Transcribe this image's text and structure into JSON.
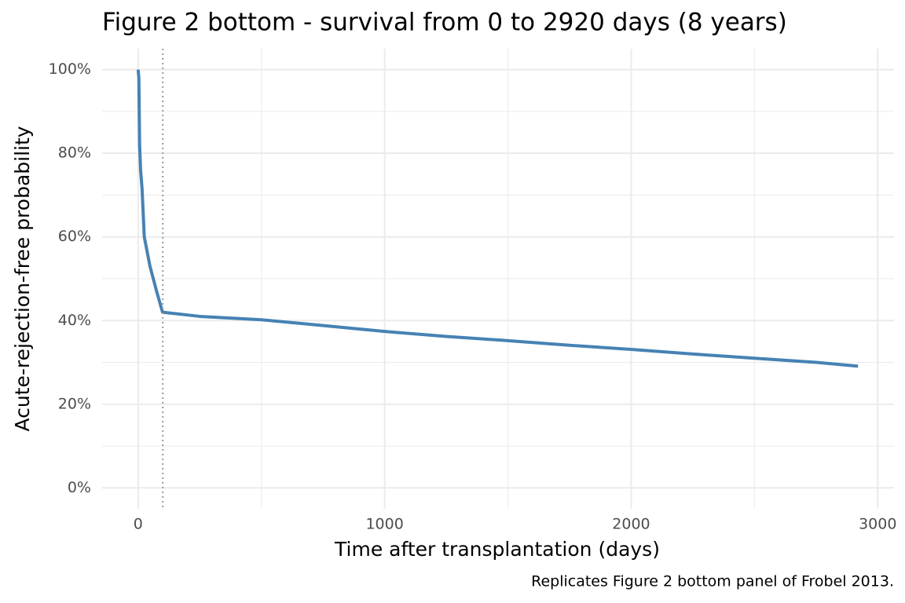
{
  "chart_data": {
    "type": "line",
    "title": "Figure 2 bottom - survival from 0 to 2920 days (8 years)",
    "x_label": "Time after transplantation (days)",
    "y_label": "Acute-rejection-free probability",
    "caption": "Replicates Figure 2 bottom panel of Frobel 2013.",
    "x": [
      0,
      3,
      6,
      10,
      16,
      25,
      48,
      75,
      99,
      250,
      500,
      750,
      1000,
      1250,
      1500,
      1750,
      2000,
      2250,
      2500,
      2750,
      2920
    ],
    "series": [
      {
        "color": "#4682b4",
        "values": [
          100,
          98,
          82,
          76,
          71.5,
          60,
          53,
          47,
          42,
          41,
          40.2,
          38.8,
          37.4,
          36.2,
          35.2,
          34.1,
          33.1,
          32,
          31,
          30,
          29.1
        ]
      }
    ],
    "vline": 100,
    "xlim": [
      -146,
      3066
    ],
    "ylim": [
      -5,
      105
    ],
    "xticks": [
      0,
      1000,
      2000,
      3000
    ],
    "yticks": [
      {
        "value": 0,
        "label": "0%"
      },
      {
        "value": 20,
        "label": "20%"
      },
      {
        "value": 40,
        "label": "40%"
      },
      {
        "value": 60,
        "label": "60%"
      },
      {
        "value": 80,
        "label": "80%"
      },
      {
        "value": 100,
        "label": "100%"
      }
    ],
    "x_minor_grid": [
      500,
      1500,
      2500
    ],
    "y_minor_grid": [
      10,
      30,
      50,
      70,
      90
    ],
    "grid": true
  }
}
